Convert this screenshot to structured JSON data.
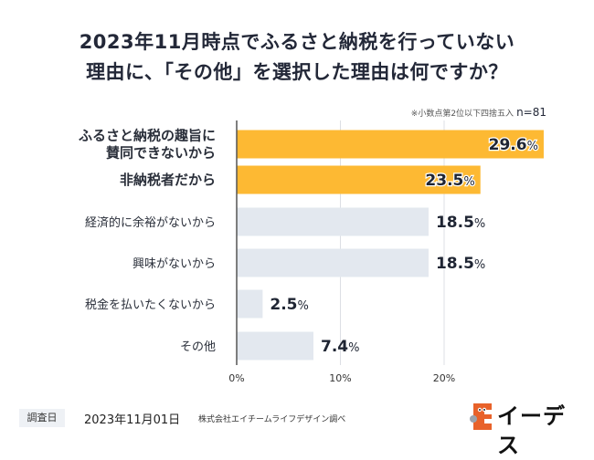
{
  "title_line1": "2023年11月時点でふるさと納税を行っていない",
  "title_line2": "理由に、「その他」を選択した理由は何ですか？",
  "note": "※小数点第2位以下四捨五入",
  "sample_size": "n=81",
  "footer": {
    "survey_date_label": "調査日",
    "survey_date": "2023年11月01日",
    "source": "株式会社エイチームライフデザイン調べ"
  },
  "logo_text": "イーデス",
  "colors": {
    "highlight": "#FDB933",
    "normal": "#E3E8EF",
    "text": "#1f2533",
    "grid": "#dcdfe4",
    "axis": "#555555"
  },
  "chart_data": {
    "type": "bar",
    "orientation": "horizontal",
    "title": "2023年11月時点でふるさと納税を行っていない理由に、「その他」を選択した理由は何ですか？",
    "categories": [
      "ふるさと納税の趣旨に\n賛同できないから",
      "非納税者だから",
      "経済的に余裕がないから",
      "興味がないから",
      "税金を払いたくないから",
      "その他"
    ],
    "values": [
      29.6,
      23.5,
      18.5,
      18.5,
      2.5,
      7.4
    ],
    "labels": [
      "29.6%",
      "23.5%",
      "18.5%",
      "18.5%",
      "2.5%",
      "7.4%"
    ],
    "highlighted": [
      true,
      true,
      false,
      false,
      false,
      false
    ],
    "xlim": [
      0,
      30
    ],
    "xticks": [
      0,
      10,
      20
    ],
    "xtick_labels": [
      "0%",
      "10%",
      "20%"
    ],
    "xlabel": "",
    "ylabel": "",
    "grid": true,
    "legend": "none"
  }
}
